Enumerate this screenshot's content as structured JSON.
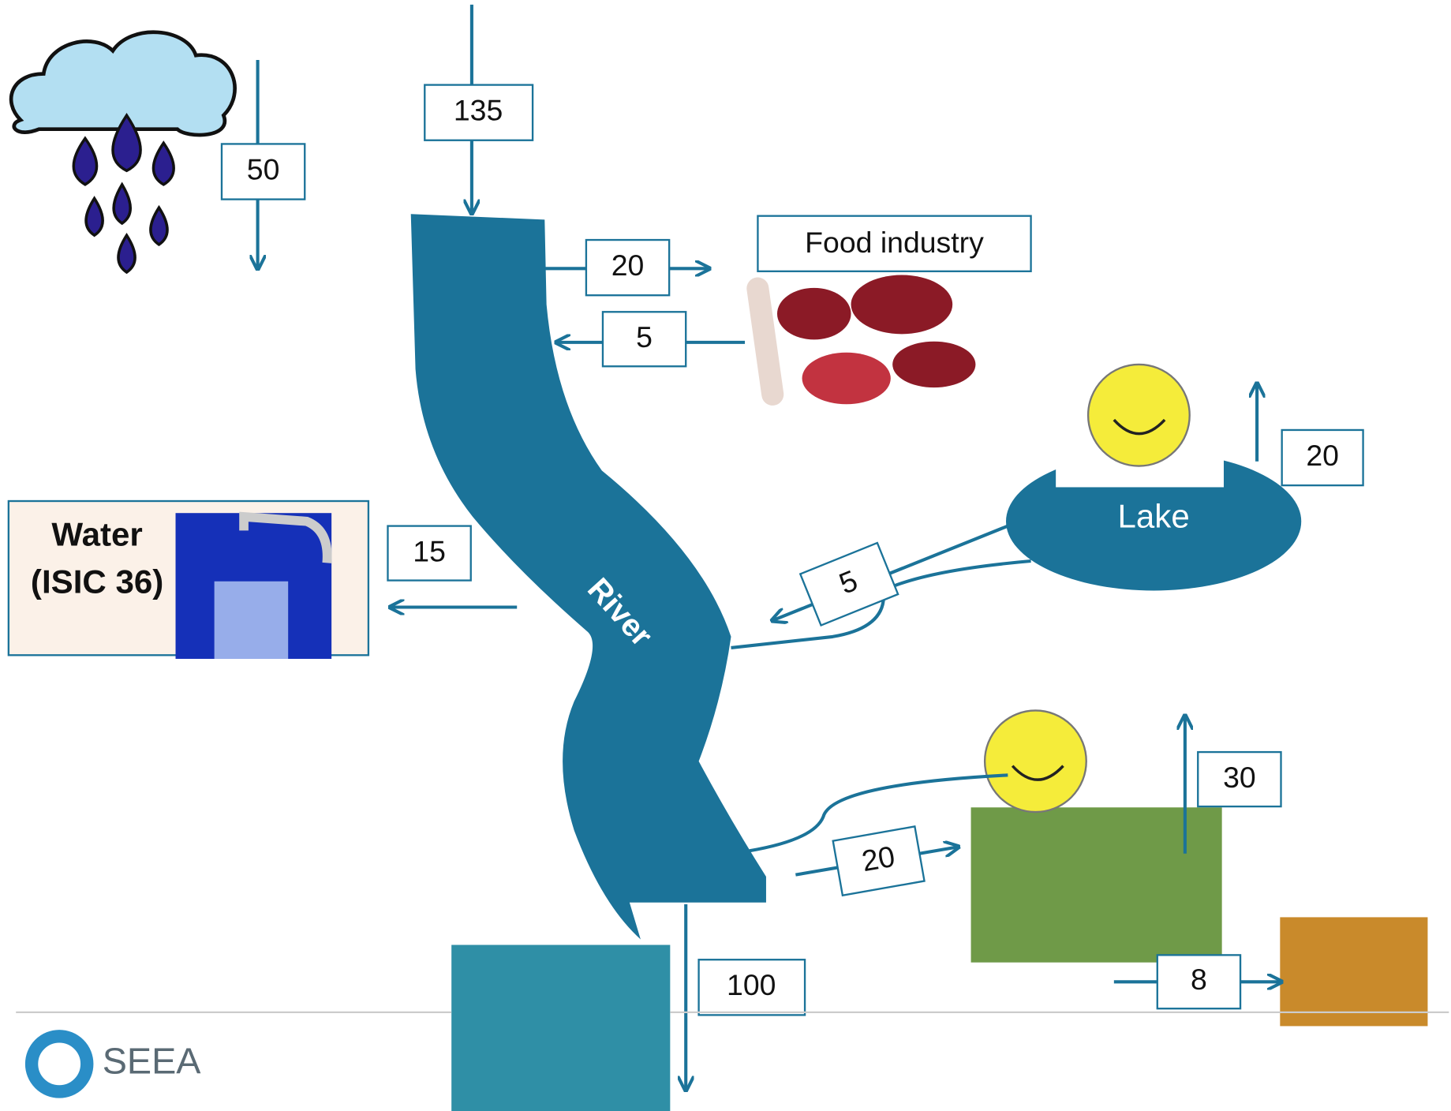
{
  "flows": {
    "inflow_top": 135,
    "rain": 50,
    "to_food": 20,
    "from_food": 5,
    "to_water": 15,
    "from_lake": 5,
    "lake_evap": 20,
    "to_field": 20,
    "field_evap": 30,
    "to_crops": 8,
    "to_sea": 100
  },
  "nodes": {
    "food_industry": "Food industry",
    "water": {
      "line1": "Water",
      "line2": "(ISIC 36)"
    },
    "lake": "Lake",
    "river": "River"
  },
  "footer": {
    "logo": "SEEA"
  }
}
